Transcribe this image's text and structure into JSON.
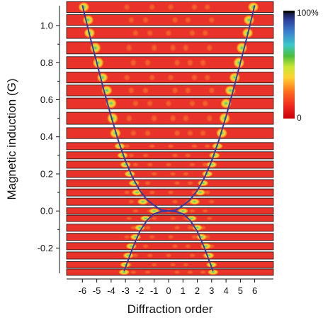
{
  "chart_data": {
    "type": "heatmap",
    "xlabel": "Diffraction order",
    "ylabel": "Magnetic induction (G)",
    "x_ticks": [
      "-6",
      "-5",
      "-4",
      "-3",
      "-2",
      "-1",
      "0",
      "1",
      "2",
      "3",
      "4",
      "5",
      "6"
    ],
    "y_ticks": [
      "1.0",
      "0.8",
      "0.6",
      "0.4",
      "0.2",
      "0.0",
      "-0.2"
    ],
    "y_tick_values": [
      1.0,
      0.8,
      0.6,
      0.4,
      0.2,
      0.0,
      -0.2
    ],
    "xlim": [
      -7.1,
      7.3
    ],
    "ylim": [
      -0.34,
      1.115
    ],
    "colorbar": {
      "max_label": "100%",
      "min_label": "0",
      "colormap": [
        "#c8000a",
        "#f0281e",
        "#ff6e1e",
        "#ffd232",
        "#c8e632",
        "#4bbe3c",
        "#3cc8c8",
        "#3c82d2",
        "#2a3c96",
        "#0a0a1e"
      ]
    },
    "strip_background_color": "#e8322a",
    "curve_color": "#3a3aa0",
    "strips": [
      {
        "field": 1.1,
        "peaks": [
          -5.9,
          5.9
        ]
      },
      {
        "field": 1.03,
        "peaks": [
          -5.6,
          5.6
        ]
      },
      {
        "field": 0.96,
        "peaks": [
          -5.5,
          5.5
        ]
      },
      {
        "field": 0.88,
        "peaks": [
          -5.1,
          5.1
        ]
      },
      {
        "field": 0.8,
        "peaks": [
          -4.9,
          4.9
        ]
      },
      {
        "field": 0.72,
        "peaks": [
          -4.6,
          4.6
        ]
      },
      {
        "field": 0.65,
        "peaks": [
          -4.3,
          4.3
        ]
      },
      {
        "field": 0.58,
        "peaks": [
          -4.0,
          4.0
        ]
      },
      {
        "field": 0.5,
        "peaks": [
          -3.9,
          3.9
        ]
      },
      {
        "field": 0.42,
        "peaks": [
          -3.7,
          3.7
        ]
      },
      {
        "field": 0.35,
        "peaks": [
          -3.4,
          3.4
        ]
      },
      {
        "field": 0.3,
        "peaks": [
          -3.2,
          3.2
        ]
      },
      {
        "field": 0.25,
        "peaks": [
          -3.0,
          3.0
        ]
      },
      {
        "field": 0.2,
        "peaks": [
          -2.7,
          2.7
        ]
      },
      {
        "field": 0.15,
        "peaks": [
          -2.4,
          2.4
        ]
      },
      {
        "field": 0.1,
        "peaks": [
          -2.2,
          2.2
        ]
      },
      {
        "field": 0.05,
        "peaks": [
          -1.8,
          1.8
        ]
      },
      {
        "field": 0.0,
        "peaks": [
          -1.0,
          1.0
        ]
      },
      {
        "field": -0.04,
        "peaks": [
          -1.6,
          1.6
        ]
      },
      {
        "field": -0.09,
        "peaks": [
          -2.0,
          2.0
        ]
      },
      {
        "field": -0.14,
        "peaks": [
          -2.3,
          2.3
        ]
      },
      {
        "field": -0.19,
        "peaks": [
          -2.6,
          2.6
        ]
      },
      {
        "field": -0.24,
        "peaks": [
          -2.8,
          2.8
        ]
      },
      {
        "field": -0.29,
        "peaks": [
          -3.0,
          3.0
        ]
      },
      {
        "field": -0.33,
        "peaks": [
          -3.1,
          3.1
        ]
      }
    ],
    "theory_curves": [
      {
        "points": [
          [
            -6.0,
            1.11
          ],
          [
            -5.5,
            0.95
          ],
          [
            -5.0,
            0.8
          ],
          [
            -4.5,
            0.65
          ],
          [
            -4.0,
            0.51
          ],
          [
            -3.5,
            0.38
          ],
          [
            -3.0,
            0.27
          ],
          [
            -2.5,
            0.18
          ],
          [
            -2.0,
            0.11
          ],
          [
            -1.5,
            0.06
          ],
          [
            -1.0,
            0.03
          ],
          [
            -0.5,
            0.005
          ],
          [
            0.0,
            0.0
          ],
          [
            0.5,
            0.005
          ],
          [
            1.0,
            0.03
          ],
          [
            1.5,
            0.06
          ],
          [
            2.0,
            0.11
          ],
          [
            2.5,
            0.18
          ],
          [
            3.0,
            0.27
          ],
          [
            3.5,
            0.38
          ],
          [
            4.0,
            0.51
          ],
          [
            4.5,
            0.65
          ],
          [
            5.0,
            0.8
          ],
          [
            5.5,
            0.95
          ],
          [
            6.0,
            1.11
          ]
        ]
      },
      {
        "points": [
          [
            -3.1,
            -0.325
          ],
          [
            -2.5,
            -0.2
          ],
          [
            -2.0,
            -0.11
          ],
          [
            -1.5,
            -0.05
          ],
          [
            -1.0,
            -0.015
          ],
          [
            -0.5,
            -0.003
          ],
          [
            0.0,
            0.0
          ],
          [
            0.5,
            -0.003
          ],
          [
            1.0,
            -0.015
          ],
          [
            1.5,
            -0.05
          ],
          [
            2.0,
            -0.11
          ],
          [
            2.5,
            -0.2
          ],
          [
            3.1,
            -0.325
          ]
        ]
      }
    ]
  }
}
